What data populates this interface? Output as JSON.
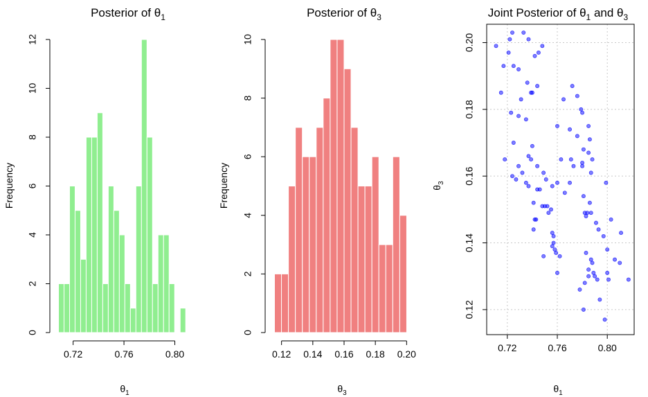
{
  "colors": {
    "theta1_bars": "#90EE90",
    "theta3_bars": "#F08080",
    "bar_border": "#ffffff",
    "points": "#0000FF",
    "grid": "#c8c8c8"
  },
  "chart_data": [
    {
      "type": "bar",
      "title": {
        "text": "Posterior of θ",
        "sub": "1"
      },
      "xlabel": {
        "text": "θ",
        "sub": "1"
      },
      "ylabel": "Frequency",
      "bin_start": 0.7085,
      "bin_width": 0.00435,
      "values": [
        2,
        2,
        6,
        5,
        3,
        8,
        8,
        9,
        2,
        6,
        5,
        4,
        2,
        1,
        6,
        12,
        8,
        2,
        4,
        4,
        2,
        0,
        1
      ],
      "xlim": [
        0.7085,
        0.8185
      ],
      "ylim": [
        0,
        12
      ],
      "xticks": [
        0.72,
        0.76,
        0.8
      ],
      "xtick_labels": [
        "0.72",
        "0.76",
        "0.80"
      ],
      "yticks": [
        0,
        2,
        4,
        6,
        8,
        10,
        12
      ],
      "ytick_labels": [
        "0",
        "2",
        "4",
        "6",
        "8",
        "10",
        "12"
      ],
      "grid": false
    },
    {
      "type": "bar",
      "title": {
        "text": "Posterior of θ",
        "sub": "3"
      },
      "xlabel": {
        "text": "θ",
        "sub": "3"
      },
      "ylabel": "Frequency",
      "bin_start": 0.1155,
      "bin_width": 0.00445,
      "values": [
        2,
        2,
        5,
        7,
        6,
        6,
        7,
        8,
        10,
        10,
        9,
        7,
        5,
        5,
        6,
        3,
        3,
        6,
        4
      ],
      "xlim": [
        0.1155,
        0.2045
      ],
      "ylim": [
        0,
        10
      ],
      "xticks": [
        0.12,
        0.14,
        0.16,
        0.18,
        0.2
      ],
      "xtick_labels": [
        "0.12",
        "0.14",
        "0.16",
        "0.18",
        "0.20"
      ],
      "yticks": [
        0,
        2,
        4,
        6,
        8,
        10
      ],
      "ytick_labels": [
        "0",
        "2",
        "4",
        "6",
        "8",
        "10"
      ],
      "grid": false
    },
    {
      "type": "scatter",
      "title": {
        "text": "Joint Posterior of θ",
        "sub": "1",
        "mid": " and θ",
        "sub2": "3"
      },
      "xlabel": {
        "text": "θ",
        "sub": "1"
      },
      "ylabel": {
        "text": "θ",
        "sub": "3"
      },
      "xlim": [
        0.7035,
        0.8215
      ],
      "ylim": [
        0.1125,
        0.2055
      ],
      "xticks": [
        0.72,
        0.76,
        0.8
      ],
      "xtick_labels": [
        "0.72",
        "0.76",
        "0.80"
      ],
      "yticks": [
        0.12,
        0.14,
        0.16,
        0.18,
        0.2
      ],
      "ytick_labels": [
        "0.12",
        "0.14",
        "0.16",
        "0.18",
        "0.20"
      ],
      "grid": true,
      "points": [
        [
          0.711,
          0.199
        ],
        [
          0.717,
          0.193
        ],
        [
          0.721,
          0.197
        ],
        [
          0.722,
          0.201
        ],
        [
          0.724,
          0.203
        ],
        [
          0.725,
          0.193
        ],
        [
          0.729,
          0.192
        ],
        [
          0.733,
          0.203
        ],
        [
          0.737,
          0.201
        ],
        [
          0.742,
          0.196
        ],
        [
          0.745,
          0.197
        ],
        [
          0.748,
          0.199
        ],
        [
          0.715,
          0.185
        ],
        [
          0.731,
          0.183
        ],
        [
          0.736,
          0.188
        ],
        [
          0.739,
          0.185
        ],
        [
          0.74,
          0.185
        ],
        [
          0.744,
          0.187
        ],
        [
          0.723,
          0.179
        ],
        [
          0.729,
          0.178
        ],
        [
          0.725,
          0.17
        ],
        [
          0.735,
          0.177
        ],
        [
          0.718,
          0.165
        ],
        [
          0.724,
          0.16
        ],
        [
          0.727,
          0.159
        ],
        [
          0.729,
          0.163
        ],
        [
          0.732,
          0.161
        ],
        [
          0.735,
          0.158
        ],
        [
          0.737,
          0.166
        ],
        [
          0.739,
          0.165
        ],
        [
          0.74,
          0.169
        ],
        [
          0.737,
          0.157
        ],
        [
          0.741,
          0.152
        ],
        [
          0.743,
          0.147
        ],
        [
          0.741,
          0.144
        ],
        [
          0.742,
          0.147
        ],
        [
          0.744,
          0.156
        ],
        [
          0.746,
          0.156
        ],
        [
          0.744,
          0.163
        ],
        [
          0.749,
          0.161
        ],
        [
          0.75,
          0.151
        ],
        [
          0.752,
          0.151
        ],
        [
          0.748,
          0.151
        ],
        [
          0.749,
          0.136
        ],
        [
          0.753,
          0.149
        ],
        [
          0.755,
          0.15
        ],
        [
          0.751,
          0.159
        ],
        [
          0.756,
          0.157
        ],
        [
          0.757,
          0.142
        ],
        [
          0.756,
          0.143
        ],
        [
          0.757,
          0.14
        ],
        [
          0.758,
          0.138
        ],
        [
          0.756,
          0.139
        ],
        [
          0.759,
          0.137
        ],
        [
          0.762,
          0.136
        ],
        [
          0.76,
          0.131
        ],
        [
          0.76,
          0.175
        ],
        [
          0.76,
          0.158
        ],
        [
          0.765,
          0.183
        ],
        [
          0.763,
          0.165
        ],
        [
          0.766,
          0.155
        ],
        [
          0.77,
          0.174
        ],
        [
          0.772,
          0.187
        ],
        [
          0.771,
          0.165
        ],
        [
          0.773,
          0.163
        ],
        [
          0.77,
          0.158
        ],
        [
          0.776,
          0.184
        ],
        [
          0.776,
          0.172
        ],
        [
          0.779,
          0.18
        ],
        [
          0.78,
          0.179
        ],
        [
          0.781,
          0.168
        ],
        [
          0.78,
          0.164
        ],
        [
          0.78,
          0.163
        ],
        [
          0.781,
          0.154
        ],
        [
          0.782,
          0.149
        ],
        [
          0.783,
          0.148
        ],
        [
          0.784,
          0.149
        ],
        [
          0.785,
          0.175
        ],
        [
          0.785,
          0.167
        ],
        [
          0.786,
          0.171
        ],
        [
          0.787,
          0.161
        ],
        [
          0.788,
          0.165
        ],
        [
          0.786,
          0.152
        ],
        [
          0.787,
          0.149
        ],
        [
          0.791,
          0.146
        ],
        [
          0.793,
          0.144
        ],
        [
          0.797,
          0.142
        ],
        [
          0.778,
          0.126
        ],
        [
          0.781,
          0.12
        ],
        [
          0.782,
          0.128
        ],
        [
          0.783,
          0.137
        ],
        [
          0.785,
          0.13
        ],
        [
          0.785,
          0.132
        ],
        [
          0.787,
          0.135
        ],
        [
          0.788,
          0.134
        ],
        [
          0.789,
          0.131
        ],
        [
          0.79,
          0.13
        ],
        [
          0.792,
          0.129
        ],
        [
          0.794,
          0.123
        ],
        [
          0.798,
          0.117
        ],
        [
          0.799,
          0.158
        ],
        [
          0.8,
          0.138
        ],
        [
          0.801,
          0.129
        ],
        [
          0.8,
          0.131
        ],
        [
          0.803,
          0.147
        ],
        [
          0.806,
          0.135
        ],
        [
          0.81,
          0.134
        ],
        [
          0.811,
          0.143
        ],
        [
          0.817,
          0.129
        ]
      ]
    }
  ]
}
